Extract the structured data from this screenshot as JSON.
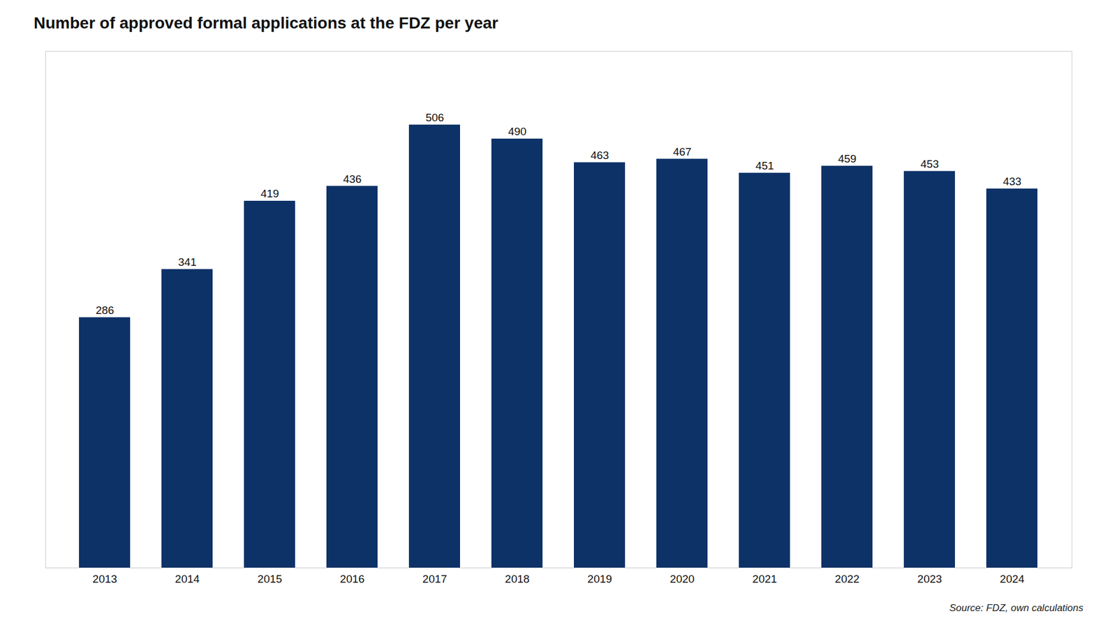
{
  "chart_data": {
    "type": "bar",
    "title": "Number of approved formal applications at the FDZ per year",
    "categories": [
      "2013",
      "2014",
      "2015",
      "2016",
      "2017",
      "2018",
      "2019",
      "2020",
      "2021",
      "2022",
      "2023",
      "2024"
    ],
    "values": [
      286,
      341,
      419,
      436,
      506,
      490,
      463,
      467,
      451,
      459,
      453,
      433
    ],
    "color": "#0d3268",
    "ylim": [
      0,
      590
    ],
    "grid": false,
    "data_labels": true,
    "tick_labels": "x",
    "caption": "Source: FDZ, own calculations"
  }
}
